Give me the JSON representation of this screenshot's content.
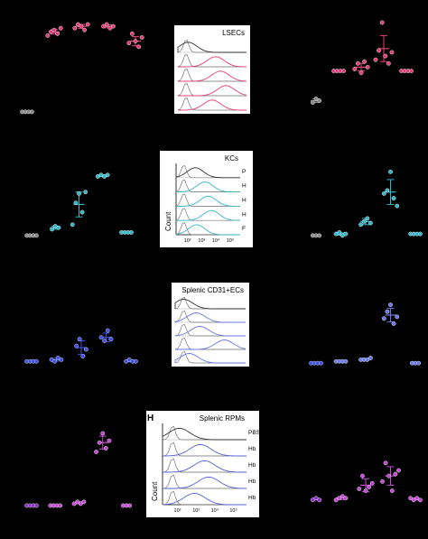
{
  "panel_tag": "H",
  "chart_data": [
    {
      "type": "scatter",
      "row": "LSECs",
      "side": "left",
      "color": "#e0407a",
      "control_color": "#888888",
      "groups": [
        {
          "x": 1,
          "points": [
            0.2,
            0.2,
            0.2,
            0.2
          ],
          "mean": 0.2,
          "sd": 0,
          "control": true
        },
        {
          "x": 2,
          "points": [
            4.3,
            4.5,
            4.6,
            4.4,
            4.7
          ],
          "mean": 4.5,
          "sd": 0.12
        },
        {
          "x": 3,
          "points": [
            4.7,
            4.9,
            4.8,
            4.6,
            4.9
          ],
          "mean": 4.8,
          "sd": 0.1
        },
        {
          "x": 4,
          "points": [
            4.8,
            4.9,
            4.7,
            4.8
          ],
          "mean": 4.8,
          "sd": 0.08
        },
        {
          "x": 5,
          "points": [
            3.9,
            4.4,
            4.0,
            3.7,
            4.2
          ],
          "mean": 4.0,
          "sd": 0.25
        }
      ]
    },
    {
      "type": "scatter",
      "row": "LSECs",
      "side": "right",
      "color": "#e0407a",
      "control_color": "#888888",
      "groups": [
        {
          "x": 1,
          "points": [
            0.7,
            0.9,
            0.8
          ],
          "mean": 0.8,
          "sd": 0.1,
          "control": true
        },
        {
          "x": 2,
          "points": [
            2.4,
            2.4,
            2.4,
            2.4
          ],
          "mean": 2.4,
          "sd": 0
        },
        {
          "x": 3,
          "points": [
            2.5,
            2.8,
            2.3,
            2.9,
            2.6
          ],
          "mean": 2.6,
          "sd": 0.2
        },
        {
          "x": 4,
          "points": [
            3.0,
            3.5,
            5.0,
            3.2,
            2.8,
            3.4
          ],
          "mean": 3.6,
          "sd": 0.7
        },
        {
          "x": 5,
          "points": [
            2.4,
            2.4,
            2.4,
            2.4
          ],
          "mean": 2.4,
          "sd": 0
        }
      ]
    },
    {
      "type": "scatter",
      "row": "KCs",
      "side": "left",
      "color": "#35b6c8",
      "control_color": "#888888",
      "groups": [
        {
          "x": 1,
          "points": [
            0.3,
            0.3,
            0.3,
            0.3
          ],
          "mean": 0.3,
          "sd": 0,
          "control": true
        },
        {
          "x": 2,
          "points": [
            0.7,
            0.9,
            0.8
          ],
          "mean": 0.8,
          "sd": 0.1
        },
        {
          "x": 3,
          "points": [
            1.0,
            2.4,
            3.0,
            1.8,
            3.1
          ],
          "mean": 2.3,
          "sd": 0.8
        },
        {
          "x": 4,
          "points": [
            4.1,
            4.2,
            4.1,
            4.2
          ],
          "mean": 4.15,
          "sd": 0.05
        },
        {
          "x": 5,
          "points": [
            0.5,
            0.5,
            0.5,
            0.5
          ],
          "mean": 0.5,
          "sd": 0
        }
      ]
    },
    {
      "type": "scatter",
      "row": "KCs",
      "side": "right",
      "color": "#35b6c8",
      "control_color": "#888888",
      "groups": [
        {
          "x": 1,
          "points": [
            0.3,
            0.3,
            0.3
          ],
          "mean": 0.3,
          "sd": 0,
          "control": true
        },
        {
          "x": 2,
          "points": [
            0.4,
            0.5,
            0.3,
            0.4
          ],
          "mean": 0.4,
          "sd": 0.08
        },
        {
          "x": 3,
          "points": [
            1.0,
            1.2,
            1.4,
            1.1
          ],
          "mean": 1.2,
          "sd": 0.2
        },
        {
          "x": 4,
          "points": [
            3.0,
            3.2,
            4.4,
            2.7,
            2.2
          ],
          "mean": 3.1,
          "sd": 0.8
        },
        {
          "x": 5,
          "points": [
            0.4,
            0.4,
            0.4,
            0.4
          ],
          "mean": 0.4,
          "sd": 0
        }
      ]
    },
    {
      "type": "scatter",
      "row": "Splenic CD31+ECs",
      "side": "left",
      "color": "#3e4ee0",
      "control_color": "#3e4ee0",
      "groups": [
        {
          "x": 1,
          "points": [
            0.3,
            0.3,
            0.3,
            0.3
          ],
          "mean": 0.3,
          "sd": 0
        },
        {
          "x": 2,
          "points": [
            0.4,
            0.3,
            0.5,
            0.4
          ],
          "mean": 0.4,
          "sd": 0.08
        },
        {
          "x": 3,
          "points": [
            1.2,
            1.6,
            0.6,
            1.0
          ],
          "mean": 1.1,
          "sd": 0.4
        },
        {
          "x": 4,
          "points": [
            1.7,
            1.5,
            2.1,
            1.6
          ],
          "mean": 1.7,
          "sd": 0.25
        },
        {
          "x": 5,
          "points": [
            0.3,
            0.4,
            0.3,
            0.3
          ],
          "mean": 0.33,
          "sd": 0.05
        }
      ]
    },
    {
      "type": "scatter",
      "row": "Splenic CD31+ECs",
      "side": "right",
      "color": "#6a78e8",
      "control_color": "#3e4ee0",
      "groups": [
        {
          "x": 1,
          "points": [
            0.2,
            0.2,
            0.2,
            0.2
          ],
          "mean": 0.2,
          "sd": 0
        },
        {
          "x": 2,
          "points": [
            0.3,
            0.3,
            0.3,
            0.3
          ],
          "mean": 0.3,
          "sd": 0
        },
        {
          "x": 3,
          "points": [
            0.4,
            0.4,
            0.4,
            0.5
          ],
          "mean": 0.43,
          "sd": 0.05
        },
        {
          "x": 4,
          "points": [
            2.8,
            3.2,
            3.6,
            2.5,
            2.9
          ],
          "mean": 3.0,
          "sd": 0.4
        },
        {
          "x": 5,
          "points": [
            0.2,
            0.2,
            0.2
          ],
          "mean": 0.2,
          "sd": 0
        }
      ]
    },
    {
      "type": "scatter",
      "row": "Splenic RPMs",
      "side": "left",
      "color": "#c04ad0",
      "control_color": "#8a30c0",
      "groups": [
        {
          "x": 1,
          "points": [
            0.1,
            0.1,
            0.1,
            0.1
          ],
          "mean": 0.1,
          "sd": 0
        },
        {
          "x": 2,
          "points": [
            0.1,
            0.1,
            0.1,
            0.1
          ],
          "mean": 0.1,
          "sd": 0
        },
        {
          "x": 3,
          "points": [
            0.2,
            0.3,
            0.2,
            0.3
          ],
          "mean": 0.25,
          "sd": 0.05
        },
        {
          "x": 4,
          "points": [
            3.0,
            3.5,
            4.0,
            3.2,
            3.6
          ],
          "mean": 3.5,
          "sd": 0.35
        },
        {
          "x": 5,
          "points": [
            0.1,
            0.1,
            0.1
          ],
          "mean": 0.1,
          "sd": 0
        }
      ]
    },
    {
      "type": "scatter",
      "row": "Splenic RPMs",
      "side": "right",
      "color": "#c04ad0",
      "control_color": "#8a30c0",
      "groups": [
        {
          "x": 1,
          "points": [
            0.4,
            0.5,
            0.4
          ],
          "mean": 0.45,
          "sd": 0.05
        },
        {
          "x": 2,
          "points": [
            0.4,
            0.5,
            0.6,
            0.5
          ],
          "mean": 0.5,
          "sd": 0.08
        },
        {
          "x": 3,
          "points": [
            1.0,
            1.7,
            0.9,
            1.1,
            1.3
          ],
          "mean": 1.2,
          "sd": 0.35
        },
        {
          "x": 4,
          "points": [
            1.4,
            2.4,
            1.7,
            0.9,
            1.8,
            2.0
          ],
          "mean": 1.7,
          "sd": 0.5
        },
        {
          "x": 5,
          "points": [
            0.5,
            0.4,
            0.5,
            0.4
          ],
          "mean": 0.45,
          "sd": 0.05
        }
      ]
    },
    {
      "type": "histogram",
      "title": "LSECs",
      "color": "#e0407a",
      "row_labels": [],
      "axis_label": "",
      "tick_labels": [],
      "peak_offset": [
        0.15,
        0.55,
        0.62,
        0.7,
        0.5
      ]
    },
    {
      "type": "histogram",
      "title": "KCs",
      "color": "#35b6c8",
      "row_labels": [
        "P",
        "H",
        "H",
        "H",
        "F"
      ],
      "axis_label": "Count",
      "tick_labels": [
        "10²",
        "10³",
        "10⁴",
        "10⁵"
      ],
      "peak_offset": [
        0.3,
        0.45,
        0.5,
        0.55,
        0.32
      ]
    },
    {
      "type": "histogram",
      "title": "Splenic  CD31+ECs",
      "color": "#6a78e8",
      "row_labels": [],
      "axis_label": "",
      "tick_labels": [],
      "peak_offset": [
        0.12,
        0.3,
        0.35,
        0.7,
        0.2
      ]
    },
    {
      "type": "histogram",
      "title": "Splenic RPMs",
      "color": "#5560d8",
      "row_labels": [
        "PBS",
        "Hb",
        "Hb",
        "Hb",
        "Hb"
      ],
      "axis_label": "Count",
      "tick_labels": [
        "10²",
        "10³",
        "10⁴",
        "10⁵"
      ],
      "peak_offset": [
        0.2,
        0.45,
        0.5,
        0.55,
        0.38
      ]
    }
  ]
}
